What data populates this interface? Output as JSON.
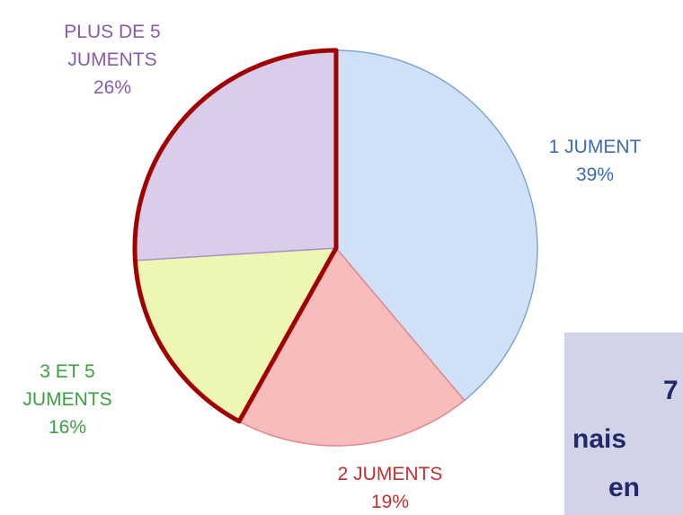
{
  "chart_data": {
    "type": "pie",
    "categories": [
      "1 JUMENT",
      "2 JUMENTS",
      "3 ET 5 JUMENTS",
      "PLUS DE 5 JUMENTS"
    ],
    "values": [
      39,
      19,
      16,
      26
    ],
    "value_labels": [
      "39%",
      "19%",
      "16%",
      "26%"
    ],
    "colors": [
      "#cfe0f7",
      "#f8bcbc",
      "#eef6b4",
      "#d9cdea"
    ],
    "label_colors": [
      "#3b6cb5",
      "#c03030",
      "#3aa040",
      "#8a5aa8"
    ],
    "annotation": [
      "7",
      "nais",
      "en"
    ]
  }
}
